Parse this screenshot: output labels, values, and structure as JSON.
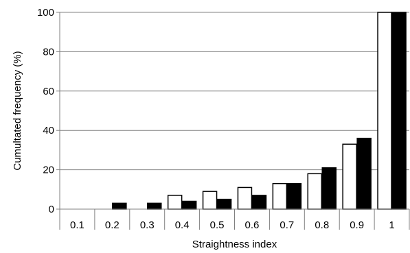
{
  "chart_data": {
    "type": "bar",
    "xlabel": "Straightness index",
    "ylabel": "Cumultated frequency (%)",
    "categories": [
      "0.1",
      "0.2",
      "0.3",
      "0.4",
      "0.5",
      "0.6",
      "0.7",
      "0.8",
      "0.9",
      "1"
    ],
    "ylim": [
      0,
      100
    ],
    "yticks": [
      0,
      20,
      40,
      60,
      80,
      100
    ],
    "grid": true,
    "series": [
      {
        "fill": "#ffffff",
        "stroke": "#000000",
        "values": [
          0,
          0,
          0,
          7,
          9,
          11,
          13,
          18,
          33,
          100
        ]
      },
      {
        "fill": "#000000",
        "stroke": "#000000",
        "values": [
          0,
          3,
          3,
          4,
          5,
          7,
          13,
          21,
          36,
          100
        ]
      }
    ]
  }
}
